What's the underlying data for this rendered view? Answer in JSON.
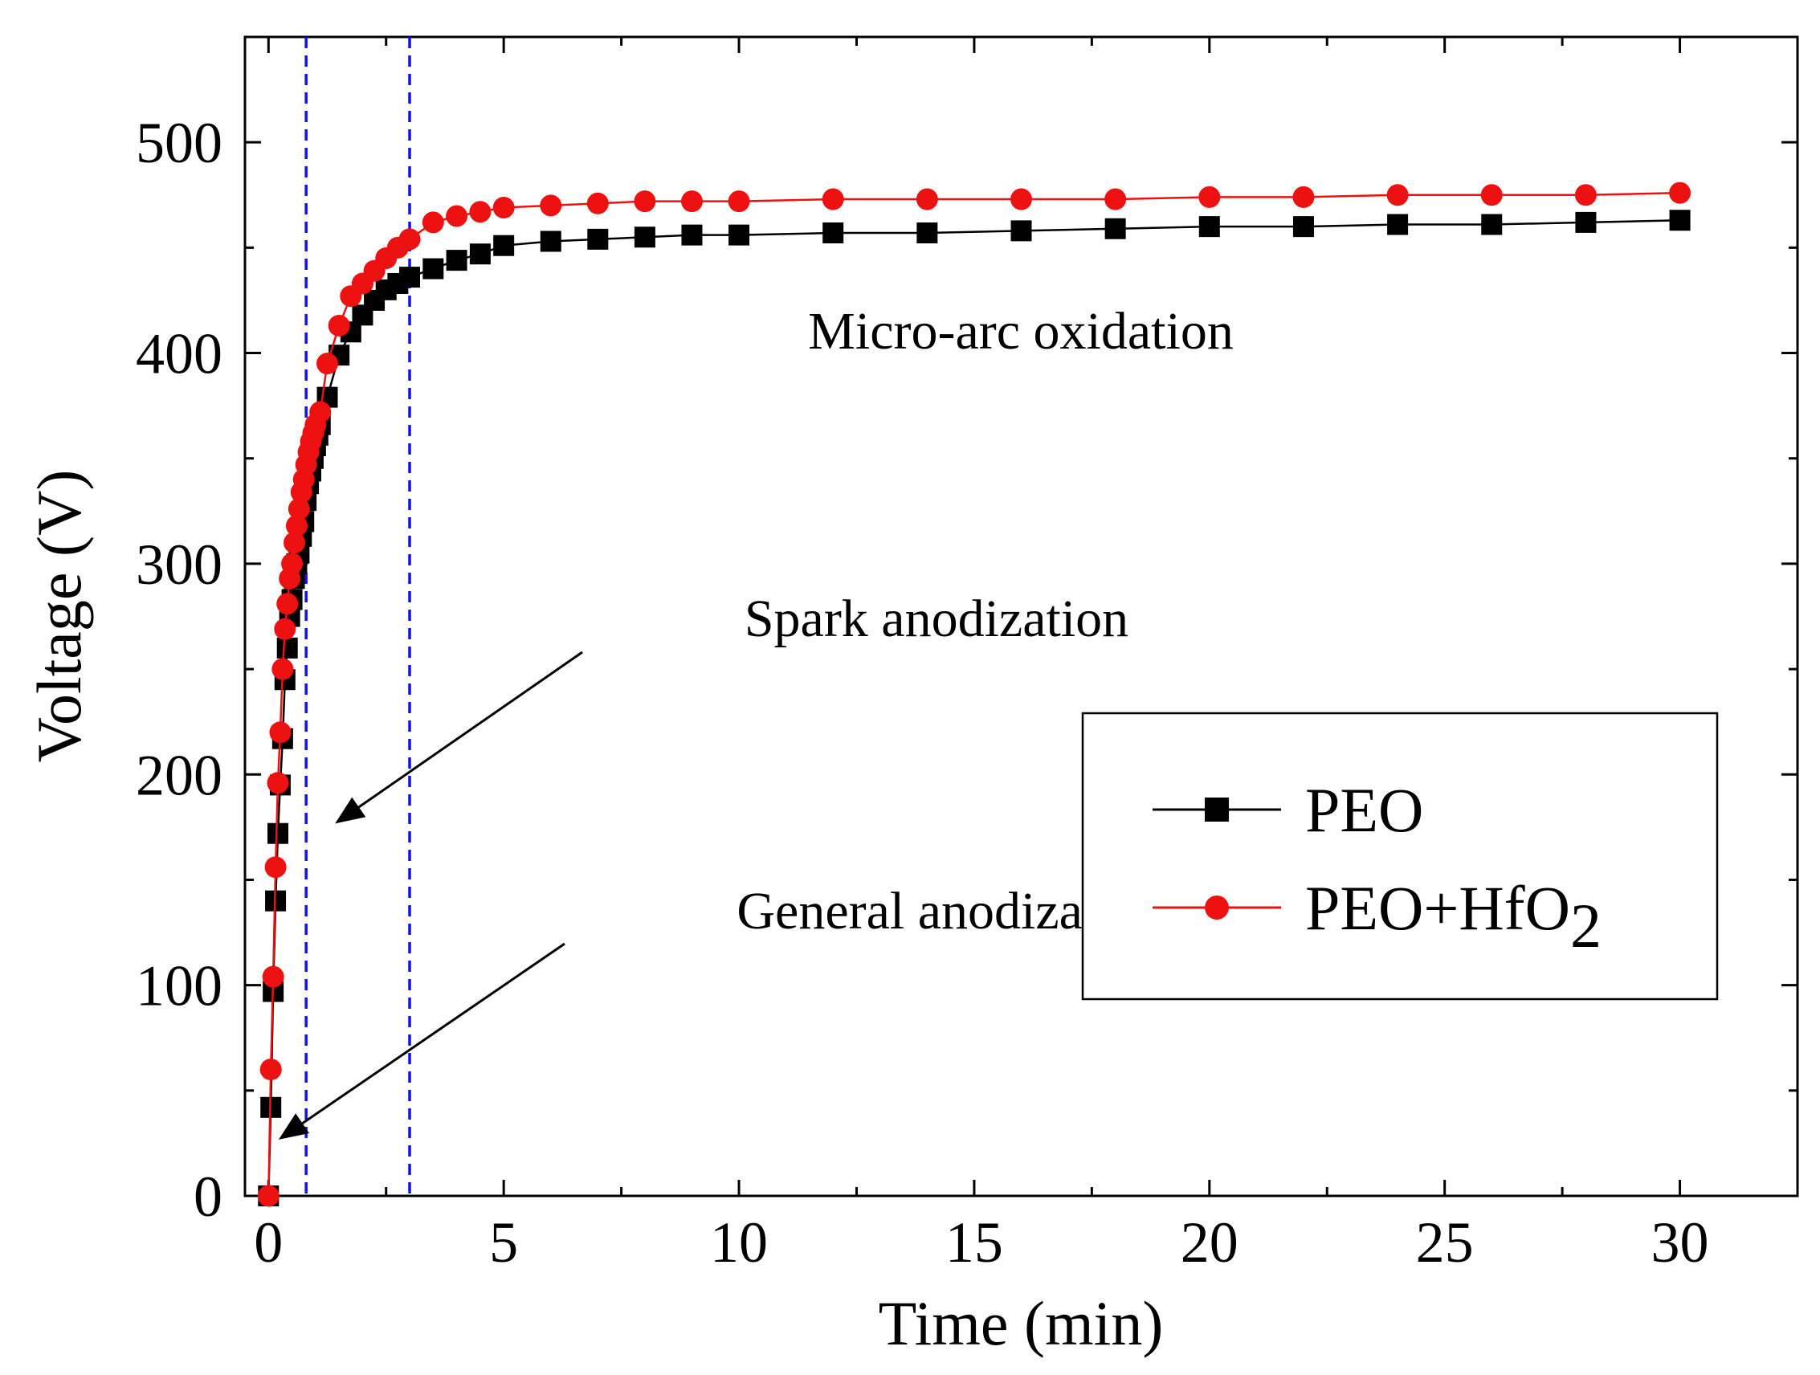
{
  "chart_data": {
    "type": "line",
    "title": "",
    "xlabel": "Time (min)",
    "ylabel": "Voltage (V)",
    "xlim": [
      -0.5,
      32.5
    ],
    "ylim": [
      0,
      550
    ],
    "xticks": [
      0,
      5,
      10,
      15,
      20,
      25,
      30
    ],
    "yticks": [
      0,
      100,
      200,
      300,
      400,
      500
    ],
    "grid": false,
    "legend_position": "bottom-right",
    "stage_boundaries_min": [
      0.8,
      3.0
    ],
    "stage_boundary_color": "#1010ee",
    "annotations": [
      {
        "text": "Micro-arc oxidation",
        "x": 16,
        "y": 405
      },
      {
        "text": "Spark anodization",
        "x": 9.5,
        "y": 270,
        "arrow_to": [
          1.5,
          178
        ]
      },
      {
        "text": "General anodization",
        "x": 9.5,
        "y": 128,
        "arrow_to": [
          0.3,
          28
        ]
      }
    ],
    "series": [
      {
        "name": "PEO",
        "color": "#000000",
        "marker": "square",
        "x": [
          0,
          0.05,
          0.1,
          0.15,
          0.2,
          0.25,
          0.3,
          0.35,
          0.4,
          0.45,
          0.5,
          0.55,
          0.6,
          0.65,
          0.7,
          0.75,
          0.8,
          0.85,
          0.9,
          0.95,
          1.0,
          1.05,
          1.1,
          1.25,
          1.5,
          1.75,
          2.0,
          2.25,
          2.5,
          2.75,
          3.0,
          3.5,
          4.0,
          4.5,
          5.0,
          6.0,
          7.0,
          8.0,
          9.0,
          10.0,
          12.0,
          14.0,
          16.0,
          18.0,
          20.0,
          22.0,
          24.0,
          26.0,
          28.0,
          30.0
        ],
        "y": [
          0,
          42,
          97,
          140,
          172,
          195,
          217,
          245,
          260,
          275,
          283,
          293,
          300,
          305,
          313,
          320,
          330,
          338,
          344,
          350,
          356,
          361,
          366,
          379,
          399,
          410,
          418,
          425,
          430,
          433,
          436,
          440,
          444,
          447,
          451,
          453,
          454,
          455,
          456,
          456,
          457,
          457,
          458,
          459,
          460,
          460,
          461,
          461,
          462,
          463
        ]
      },
      {
        "name": "PEO+HfO2",
        "legend_main": "PEO+HfO",
        "legend_subscript": "2",
        "color": "#ee1111",
        "marker": "circle",
        "x": [
          0,
          0.05,
          0.1,
          0.15,
          0.2,
          0.25,
          0.3,
          0.35,
          0.4,
          0.45,
          0.5,
          0.55,
          0.6,
          0.65,
          0.7,
          0.75,
          0.8,
          0.85,
          0.9,
          0.95,
          1.0,
          1.1,
          1.25,
          1.5,
          1.75,
          2.0,
          2.25,
          2.5,
          2.75,
          3.0,
          3.5,
          4.0,
          4.5,
          5.0,
          6.0,
          7.0,
          8.0,
          9.0,
          10.0,
          12.0,
          14.0,
          16.0,
          18.0,
          20.0,
          22.0,
          24.0,
          26.0,
          28.0,
          30.0
        ],
        "y": [
          0,
          60,
          104,
          156,
          196,
          220,
          250,
          269,
          281,
          293,
          300,
          310,
          318,
          326,
          334,
          340,
          347,
          353,
          358,
          362,
          366,
          372,
          395,
          413,
          427,
          433,
          439,
          445,
          450,
          454,
          462,
          465,
          467,
          469,
          470,
          471,
          472,
          472,
          472,
          473,
          473,
          473,
          473,
          474,
          474,
          475,
          475,
          475,
          476
        ]
      }
    ]
  }
}
